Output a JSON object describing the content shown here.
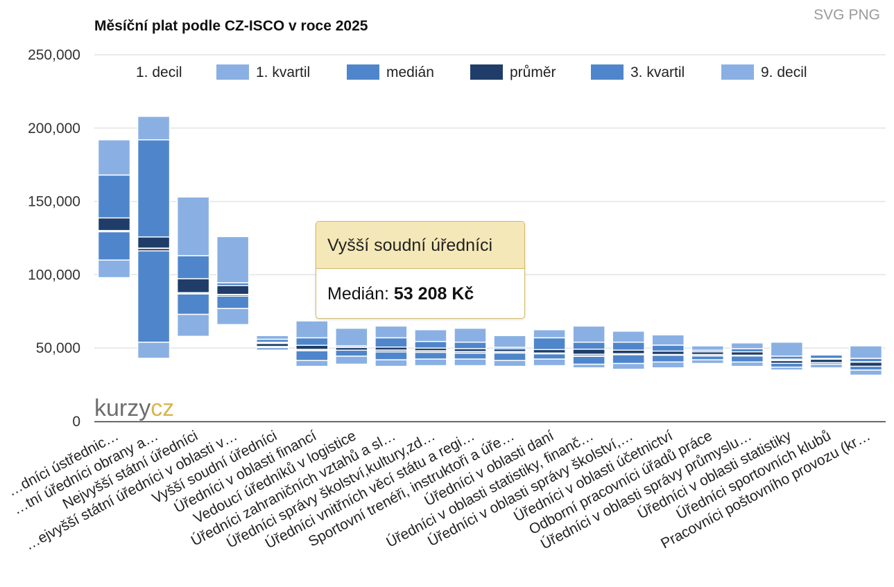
{
  "export": {
    "svg_label": "SVG",
    "png_label": "PNG"
  },
  "logo": {
    "part1": "kurzy",
    "part2": "cz"
  },
  "tooltip": {
    "title": "Vyšší soudní úředníci",
    "label": "Medián:",
    "value": "53 208 Kč"
  },
  "colors": {
    "decile": "#8ab0e3",
    "quartile": "#4f86cb",
    "mean": "#1f3d68",
    "grid": "#e3e3e3",
    "axis": "#333333",
    "logo_gray": "#6d6d6d",
    "logo_gold": "#d9b54f"
  },
  "chart_data": {
    "type": "bar",
    "title": "Měsíční plat podle CZ-ISCO v roce 2025",
    "ylim": [
      0,
      250000
    ],
    "yticks": [
      0,
      50000,
      100000,
      150000,
      200000,
      250000
    ],
    "ytick_labels": [
      "0",
      "50,000",
      "100,000",
      "150,000",
      "200,000",
      "250,000"
    ],
    "legend": [
      "1. decil",
      "1. kvartil",
      "medián",
      "průměr",
      "3. kvartil",
      "9. decil"
    ],
    "legend_position": "top",
    "grid": true,
    "categories": [
      "…dníci ústřednic…",
      "…tní úředníci obrany a…",
      "Nejvyšší státní úředníci",
      "…ejvyšší státní úředníci v oblasti v…",
      "Vyšší soudní úředníci",
      "Úředníci v oblasti financí",
      "Vedoucí úředníků v logistice",
      "Úředníci zahraničních vztahů a sl…",
      "Úředníci správy školství,kultury,zd…",
      "Úředníci vnitřních věcí státu a regi…",
      "Sportovní trenéři, instruktoři a úře…",
      "Úředníci v oblasti daní",
      "Úředníci v oblasti statistiky, finanč…",
      "Úředníci v oblasti správy školství,…",
      "Úředníci v oblasti účetnictví",
      "Odborní pracovníci úřadů práce",
      "Úředníci v oblasti správy průmyslu…",
      "Úředníci v oblasti statistiky",
      "Úředníci sportovních klubů",
      "Pracovníci poštovního provozu (kr…"
    ],
    "series": [
      {
        "name": "1. decil",
        "values": [
          98000,
          43000,
          58000,
          66000,
          48500,
          37500,
          39000,
          37500,
          38000,
          38000,
          37500,
          38000,
          36500,
          35500,
          36500,
          39500,
          37500,
          35000,
          36500,
          31500
        ]
      },
      {
        "name": "1. kvartil",
        "values": [
          110000,
          54000,
          73000,
          77000,
          50500,
          41500,
          44500,
          42000,
          42500,
          42500,
          41500,
          42500,
          39000,
          39500,
          40500,
          42000,
          40500,
          37000,
          39000,
          35000
        ]
      },
      {
        "name": "medián",
        "values": [
          130000,
          118000,
          87000,
          86500,
          53208,
          49000,
          50500,
          48500,
          48000,
          47500,
          47500,
          46500,
          44500,
          46000,
          45500,
          45500,
          45000,
          41500,
          42500,
          40500
        ]
      },
      {
        "name": "průměr",
        "values": [
          134000,
          121000,
          92500,
          89000,
          52500,
          50000,
          50000,
          49000,
          48500,
          48000,
          48000,
          47500,
          47500,
          47000,
          46500,
          46000,
          46000,
          41000,
          41500,
          39000
        ]
      },
      {
        "name": "3. kvartil",
        "values": [
          168000,
          192000,
          113000,
          94500,
          56000,
          57000,
          51500,
          57000,
          54500,
          54000,
          50500,
          57000,
          54000,
          54000,
          52000,
          48500,
          49500,
          44500,
          45500,
          43000
        ]
      },
      {
        "name": "9. decil",
        "values": [
          192000,
          208000,
          153000,
          126000,
          58500,
          68500,
          63500,
          65000,
          62500,
          63500,
          58500,
          62500,
          65000,
          61500,
          59000,
          51500,
          53500,
          54000,
          45500,
          51500
        ]
      }
    ]
  }
}
